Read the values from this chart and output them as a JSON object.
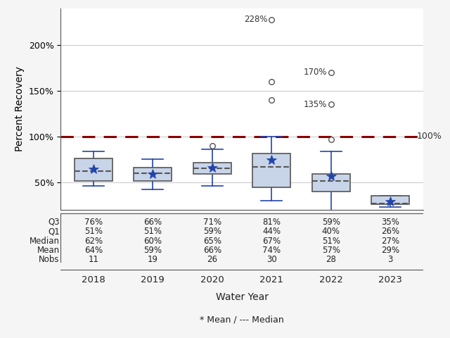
{
  "years": [
    2018,
    2019,
    2020,
    2021,
    2022,
    2023
  ],
  "q1": [
    51,
    51,
    59,
    44,
    40,
    26
  ],
  "median": [
    62,
    60,
    65,
    67,
    51,
    27
  ],
  "q3": [
    76,
    66,
    71,
    81,
    59,
    35
  ],
  "mean": [
    64,
    59,
    66,
    74,
    57,
    29
  ],
  "whisker_low": [
    46,
    42,
    46,
    30,
    17,
    23
  ],
  "whisker_high": [
    84,
    75,
    86,
    100,
    84,
    35
  ],
  "outliers": {
    "2020": [
      90
    ],
    "2021": [
      140,
      160,
      228
    ],
    "2022": [
      97,
      135,
      170
    ]
  },
  "labeled_outliers": [
    {
      "year": "2021",
      "val": 228,
      "label": "228%",
      "label_side": "right"
    },
    {
      "year": "2022",
      "val": 170,
      "label": "170%",
      "label_side": "left"
    },
    {
      "year": "2022",
      "val": 135,
      "label": "135%",
      "label_side": "right"
    }
  ],
  "ref_line": 100,
  "ref_line_label": "100%",
  "ref_line_color": "#8b0000",
  "box_facecolor": "#c8d4e8",
  "box_edgecolor": "#555555",
  "median_line_color": "#555555",
  "mean_marker_color": "#2244aa",
  "whisker_color": "#2244aa",
  "outlier_edge_color": "#555555",
  "ylabel": "Percent Recovery",
  "xlabel": "Water Year",
  "footnote": "* Mean / --- Median",
  "ylim_plot": [
    20,
    240
  ],
  "yticks": [
    50,
    100,
    150,
    200
  ],
  "yticklabels": [
    "50%",
    "100%",
    "150%",
    "200%"
  ],
  "table_rows": [
    "Q3",
    "Q1",
    "Median",
    "Mean",
    "Nobs"
  ],
  "table_data": [
    [
      "76%",
      "66%",
      "71%",
      "81%",
      "59%",
      "35%"
    ],
    [
      "51%",
      "51%",
      "59%",
      "44%",
      "40%",
      "26%"
    ],
    [
      "62%",
      "60%",
      "65%",
      "67%",
      "51%",
      "27%"
    ],
    [
      "64%",
      "59%",
      "66%",
      "74%",
      "57%",
      "29%"
    ],
    [
      "11",
      "19",
      "26",
      "30",
      "28",
      "3"
    ]
  ],
  "bg_color": "#f5f5f5",
  "plot_bg_color": "#ffffff"
}
